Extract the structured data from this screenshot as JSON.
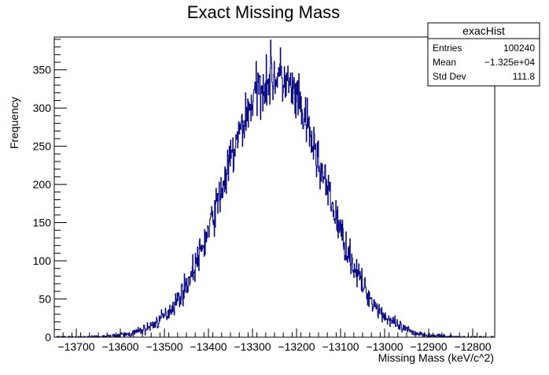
{
  "chart_data": {
    "type": "bar",
    "title": "Exact Missing Mass",
    "xlabel": "Missing Mass (keV/c^2)",
    "ylabel": "Frequency",
    "xlim": [
      -13750,
      -12750
    ],
    "ylim": [
      0,
      393
    ],
    "x_ticks": [
      -13700,
      -13600,
      -13500,
      -13400,
      -13300,
      -13200,
      -13100,
      -13000,
      -12900,
      -12800
    ],
    "x_tick_labels": [
      "−13700",
      "−13600",
      "−13500",
      "−13400",
      "−13300",
      "−13200",
      "−13100",
      "−13000",
      "−12900",
      "−12800"
    ],
    "y_ticks": [
      0,
      50,
      100,
      150,
      200,
      250,
      300,
      350
    ],
    "y_tick_labels": [
      "0",
      "50",
      "100",
      "150",
      "200",
      "250",
      "300",
      "350"
    ],
    "series_color": "#000080",
    "distribution": {
      "mean": -13250,
      "std_dev": 111.8,
      "peak": 342,
      "bin_width": 1
    },
    "stats_box": {
      "title": "exacHist",
      "rows": [
        {
          "label": "Entries",
          "value": "100240"
        },
        {
          "label": "Mean",
          "value": "−1.325e+04"
        },
        {
          "label": "Std Dev",
          "value": "111.8"
        }
      ]
    }
  }
}
